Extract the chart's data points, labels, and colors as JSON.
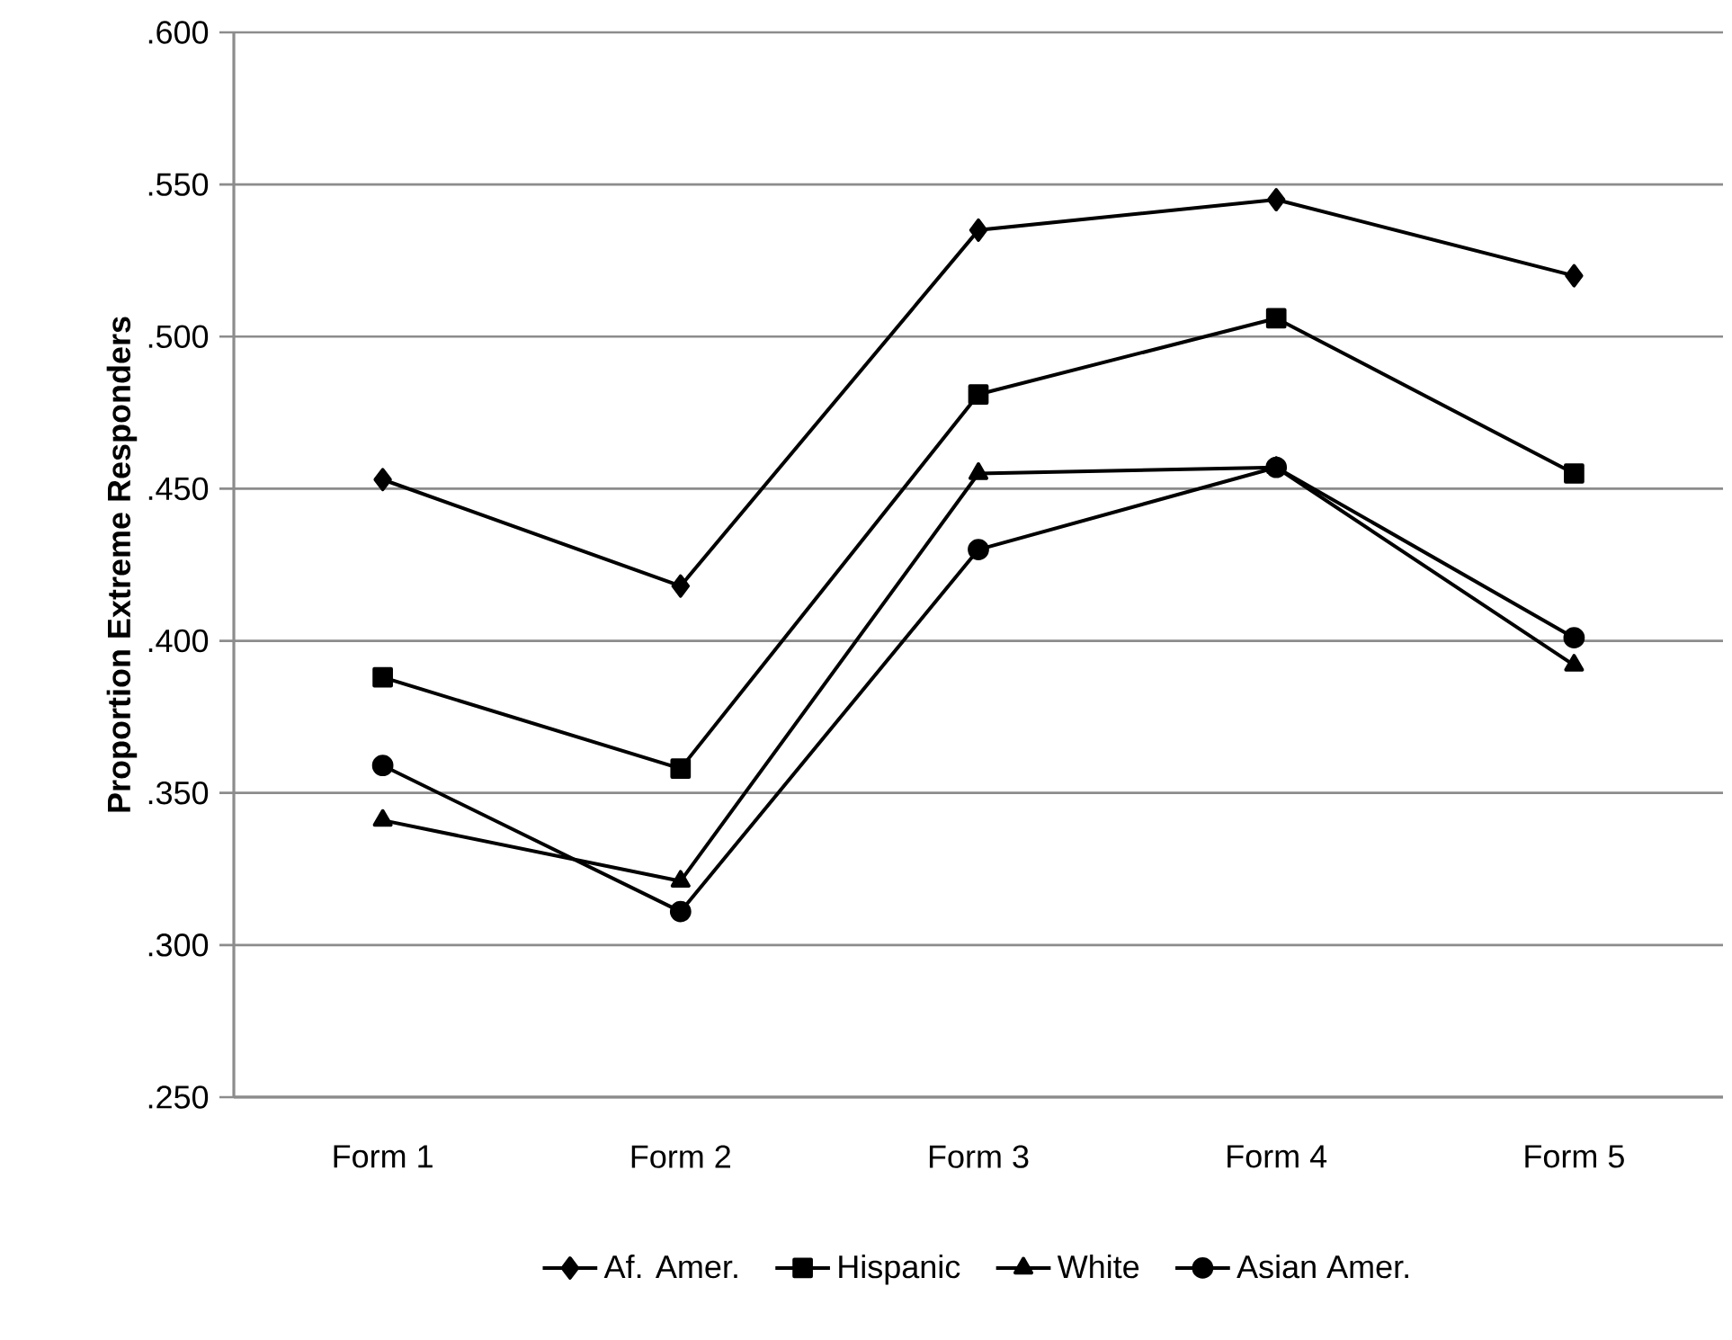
{
  "chart_data": {
    "type": "line",
    "ylabel": "Proportion Extreme Responders",
    "categories": [
      "Form 1",
      "Form 2",
      "Form 3",
      "Form 4",
      "Form 5"
    ],
    "series": [
      {
        "name": "Af. Amer.",
        "color": "#000000",
        "marker": "diamond",
        "values": [
          0.453,
          0.418,
          0.535,
          0.545,
          0.52
        ]
      },
      {
        "name": "Hispanic",
        "color": "#000000",
        "marker": "square",
        "values": [
          0.388,
          0.358,
          0.481,
          0.506,
          0.455
        ]
      },
      {
        "name": "White",
        "color": "#000000",
        "marker": "triangle",
        "values": [
          0.341,
          0.321,
          0.455,
          0.457,
          0.392
        ]
      },
      {
        "name": "Asian Amer.",
        "color": "#000000",
        "marker": "circle",
        "values": [
          0.359,
          0.311,
          0.43,
          0.457,
          0.401
        ]
      }
    ],
    "ylim": [
      0.25,
      0.6
    ],
    "yticks": [
      {
        "value": 0.25,
        "label": ".250"
      },
      {
        "value": 0.3,
        "label": ".300"
      },
      {
        "value": 0.35,
        "label": ".350"
      },
      {
        "value": 0.4,
        "label": ".400"
      },
      {
        "value": 0.45,
        "label": ".450"
      },
      {
        "value": 0.5,
        "label": ".500"
      },
      {
        "value": 0.55,
        "label": ".550"
      },
      {
        "value": 0.6,
        "label": ".600"
      }
    ],
    "grid": "y",
    "legend": "bottom",
    "line_style": "solid"
  }
}
